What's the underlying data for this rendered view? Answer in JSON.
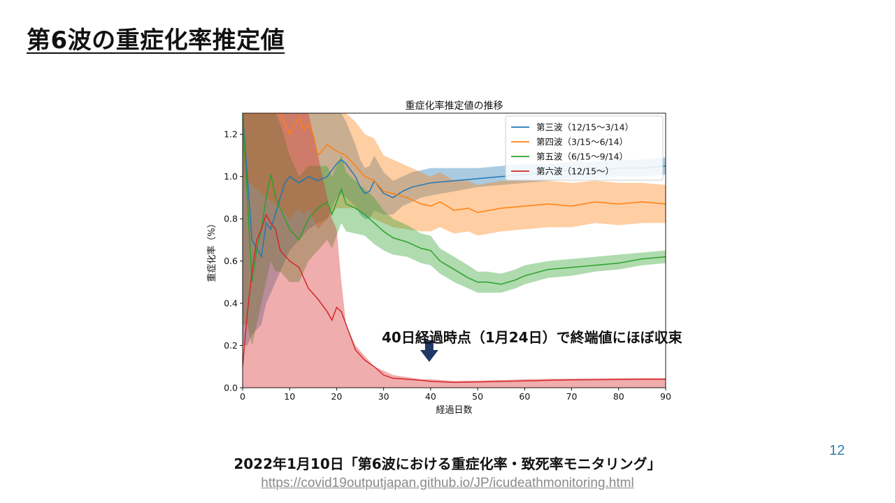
{
  "slide": {
    "title": "第6波の重症化率推定値",
    "annotation": "40日経過時点（1月24日）で終端値にほぼ収束",
    "source": "2022年1月10日「第6波における重症化率・致死率モニタリング」",
    "url": "https://covid19outputjapan.github.io/JP/icudeathmonitoring.html",
    "page_number": "12"
  },
  "chart_data": {
    "type": "line",
    "title": "重症化率推定値の推移",
    "xlabel": "経過日数",
    "ylabel": "重症化率（%）",
    "xlim": [
      0,
      90
    ],
    "ylim": [
      0,
      1.3
    ],
    "xticks": [
      0,
      10,
      20,
      30,
      40,
      50,
      60,
      70,
      80,
      90
    ],
    "yticks": [
      0.0,
      0.2,
      0.4,
      0.6,
      0.8,
      1.0,
      1.2
    ],
    "legend_position": "top-right",
    "arrow_at_x": 40,
    "series": [
      {
        "name": "第三波（12/15〜3/14）",
        "color": "#1f77b4",
        "x": [
          0,
          1,
          2,
          4,
          5,
          6,
          8,
          9,
          10,
          12,
          14,
          16,
          18,
          20,
          21,
          22,
          24,
          25,
          26,
          27,
          28,
          30,
          32,
          34,
          36,
          38,
          40,
          45,
          50,
          55,
          60,
          65,
          70,
          75,
          80,
          85,
          90
        ],
        "y": [
          1.3,
          1.0,
          0.7,
          0.62,
          0.78,
          0.75,
          0.9,
          0.97,
          1.0,
          0.97,
          1.0,
          0.98,
          1.0,
          1.06,
          1.08,
          1.06,
          1.0,
          0.95,
          0.92,
          0.93,
          0.98,
          0.92,
          0.9,
          0.93,
          0.95,
          0.96,
          0.97,
          0.98,
          0.99,
          1.0,
          1.01,
          1.02,
          1.03,
          1.03,
          1.04,
          1.04,
          1.05
        ],
        "lower": [
          0.2,
          0.2,
          0.25,
          0.3,
          0.4,
          0.45,
          0.55,
          0.6,
          0.65,
          0.7,
          0.75,
          0.78,
          0.8,
          0.9,
          0.92,
          0.9,
          0.86,
          0.82,
          0.8,
          0.8,
          0.84,
          0.82,
          0.82,
          0.86,
          0.88,
          0.9,
          0.91,
          0.93,
          0.95,
          0.96,
          0.97,
          0.98,
          0.99,
          0.99,
          1.0,
          1.0,
          1.01
        ],
        "upper": [
          1.3,
          1.3,
          1.3,
          1.3,
          1.3,
          1.3,
          1.3,
          1.3,
          1.3,
          1.3,
          1.3,
          1.3,
          1.3,
          1.3,
          1.3,
          1.26,
          1.15,
          1.08,
          1.04,
          1.05,
          1.1,
          1.02,
          0.98,
          1.0,
          1.02,
          1.03,
          1.04,
          1.04,
          1.04,
          1.05,
          1.06,
          1.06,
          1.07,
          1.07,
          1.08,
          1.08,
          1.09
        ]
      },
      {
        "name": "第四波（3/15〜6/14）",
        "color": "#ff7f0e",
        "x": [
          0,
          5,
          8,
          10,
          12,
          13,
          14,
          15,
          16,
          18,
          20,
          22,
          24,
          26,
          28,
          30,
          32,
          35,
          38,
          40,
          42,
          45,
          48,
          50,
          55,
          60,
          65,
          70,
          75,
          80,
          85,
          90
        ],
        "y": [
          1.3,
          1.3,
          1.3,
          1.2,
          1.28,
          1.22,
          1.25,
          1.2,
          1.1,
          1.15,
          1.12,
          1.1,
          1.05,
          1.0,
          0.98,
          0.93,
          0.92,
          0.9,
          0.87,
          0.86,
          0.88,
          0.84,
          0.85,
          0.83,
          0.85,
          0.86,
          0.87,
          0.86,
          0.88,
          0.87,
          0.88,
          0.87
        ],
        "lower": [
          1.0,
          0.9,
          0.85,
          0.8,
          0.85,
          0.82,
          0.85,
          0.8,
          0.75,
          0.8,
          0.85,
          0.85,
          0.85,
          0.82,
          0.8,
          0.78,
          0.76,
          0.75,
          0.74,
          0.74,
          0.76,
          0.73,
          0.74,
          0.72,
          0.74,
          0.75,
          0.76,
          0.76,
          0.78,
          0.77,
          0.78,
          0.78
        ],
        "upper": [
          1.3,
          1.3,
          1.3,
          1.3,
          1.3,
          1.3,
          1.3,
          1.3,
          1.3,
          1.3,
          1.3,
          1.3,
          1.26,
          1.2,
          1.18,
          1.1,
          1.08,
          1.05,
          1.02,
          1.0,
          1.02,
          0.98,
          0.98,
          0.96,
          0.98,
          0.98,
          0.98,
          0.97,
          0.98,
          0.97,
          0.97,
          0.96
        ]
      },
      {
        "name": "第五波（6/15〜9/14）",
        "color": "#2ca02c",
        "x": [
          0,
          1,
          2,
          3,
          4,
          5,
          6,
          7,
          8,
          10,
          12,
          14,
          16,
          18,
          19,
          20,
          21,
          22,
          24,
          26,
          28,
          30,
          32,
          35,
          38,
          40,
          42,
          45,
          48,
          50,
          52,
          55,
          58,
          60,
          65,
          70,
          75,
          80,
          85,
          90
        ],
        "y": [
          1.3,
          0.9,
          0.5,
          0.65,
          0.75,
          0.9,
          1.01,
          0.9,
          0.85,
          0.75,
          0.7,
          0.8,
          0.85,
          0.88,
          0.82,
          0.88,
          0.94,
          0.87,
          0.85,
          0.82,
          0.78,
          0.74,
          0.71,
          0.69,
          0.66,
          0.65,
          0.6,
          0.56,
          0.52,
          0.5,
          0.5,
          0.49,
          0.51,
          0.53,
          0.56,
          0.57,
          0.58,
          0.59,
          0.61,
          0.62
        ],
        "lower": [
          0.3,
          0.3,
          0.2,
          0.3,
          0.4,
          0.5,
          0.6,
          0.55,
          0.55,
          0.5,
          0.5,
          0.6,
          0.65,
          0.7,
          0.66,
          0.72,
          0.78,
          0.74,
          0.73,
          0.72,
          0.68,
          0.65,
          0.63,
          0.62,
          0.59,
          0.58,
          0.54,
          0.5,
          0.47,
          0.45,
          0.45,
          0.45,
          0.47,
          0.49,
          0.52,
          0.53,
          0.55,
          0.56,
          0.58,
          0.59
        ],
        "upper": [
          1.3,
          1.3,
          1.3,
          1.3,
          1.3,
          1.3,
          1.3,
          1.3,
          1.25,
          1.1,
          1.0,
          1.05,
          1.05,
          1.05,
          1.0,
          1.05,
          1.1,
          1.02,
          0.98,
          0.94,
          0.9,
          0.84,
          0.8,
          0.77,
          0.73,
          0.72,
          0.66,
          0.62,
          0.58,
          0.55,
          0.55,
          0.54,
          0.56,
          0.58,
          0.6,
          0.61,
          0.62,
          0.63,
          0.64,
          0.65
        ]
      },
      {
        "name": "第六波（12/15〜）",
        "color": "#d62728",
        "x": [
          0,
          1,
          2,
          3,
          4,
          5,
          6,
          7,
          8,
          10,
          12,
          14,
          16,
          18,
          19,
          20,
          21,
          22,
          24,
          26,
          28,
          30,
          32,
          35,
          38,
          40,
          45,
          50,
          55,
          60,
          65,
          70,
          75,
          80,
          85,
          90
        ],
        "y": [
          0.1,
          0.35,
          0.55,
          0.7,
          0.75,
          0.82,
          0.78,
          0.75,
          0.65,
          0.6,
          0.57,
          0.47,
          0.42,
          0.36,
          0.32,
          0.38,
          0.36,
          0.3,
          0.18,
          0.13,
          0.1,
          0.06,
          0.045,
          0.04,
          0.035,
          0.03,
          0.025,
          0.027,
          0.03,
          0.032,
          0.035,
          0.037,
          0.038,
          0.039,
          0.04,
          0.04
        ],
        "lower": [
          0.0,
          0.0,
          0.0,
          0.0,
          0.0,
          0.0,
          0.0,
          0.0,
          0.0,
          0.0,
          0.0,
          0.0,
          0.0,
          0.0,
          0.0,
          0.0,
          0.0,
          0.0,
          0.0,
          0.0,
          0.0,
          0.0,
          0.0,
          0.0,
          0.0,
          0.0,
          0.0,
          0.0,
          0.0,
          0.0,
          0.0,
          0.0,
          0.0,
          0.0,
          0.0,
          0.0
        ],
        "upper": [
          1.3,
          1.3,
          1.3,
          1.3,
          1.3,
          1.3,
          1.3,
          1.3,
          1.3,
          1.3,
          1.3,
          1.3,
          1.1,
          0.9,
          0.8,
          0.75,
          0.5,
          0.3,
          0.2,
          0.15,
          0.1,
          0.08,
          0.06,
          0.05,
          0.04,
          0.04,
          0.032,
          0.034,
          0.036,
          0.04,
          0.042,
          0.043,
          0.044,
          0.045,
          0.046,
          0.046
        ]
      }
    ]
  }
}
